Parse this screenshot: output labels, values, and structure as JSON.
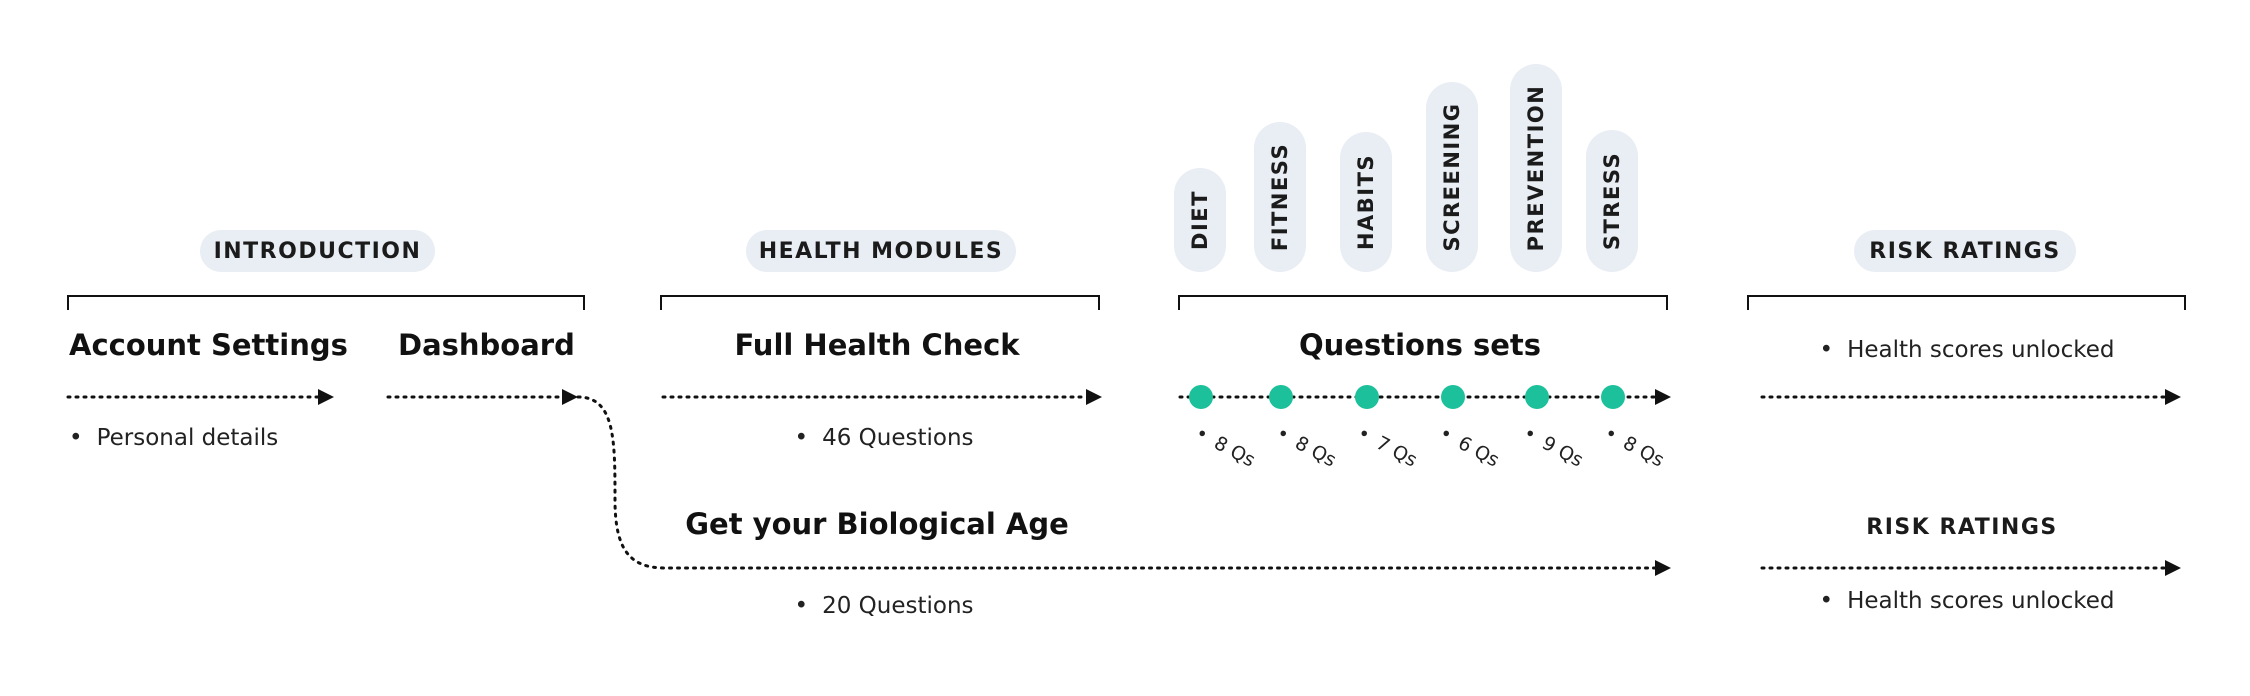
{
  "sections": {
    "introduction": {
      "label": "INTRODUCTION",
      "steps": [
        {
          "title": "Account Settings",
          "bullet": "Personal details"
        },
        {
          "title": "Dashboard"
        }
      ]
    },
    "health_modules": {
      "label": "HEALTH MODULES",
      "steps": [
        {
          "title": "Full Health Check",
          "bullet": "46 Questions"
        },
        {
          "title": "Get your Biological Age",
          "bullet": "20 Questions"
        }
      ]
    },
    "question_sets": {
      "title": "Questions sets",
      "accent_color": "#1cc09a",
      "categories": [
        {
          "label": "DIET",
          "count": "8 Qs"
        },
        {
          "label": "FITNESS",
          "count": "8 Qs"
        },
        {
          "label": "HABITS",
          "count": "7 Qs"
        },
        {
          "label": "SCREENING",
          "count": "6 Qs"
        },
        {
          "label": "PREVENTION",
          "count": "9 Qs"
        },
        {
          "label": "STRESS",
          "count": "8 Qs"
        }
      ]
    },
    "risk_ratings": {
      "label": "RISK RATINGS",
      "top_bullet": "Health scores unlocked",
      "sub_label": "RISK RATINGS",
      "bottom_bullet": "Health scores unlocked"
    }
  },
  "colors": {
    "pill_background": "#e9eef4",
    "line": "#111111",
    "accent": "#1cc09a"
  }
}
